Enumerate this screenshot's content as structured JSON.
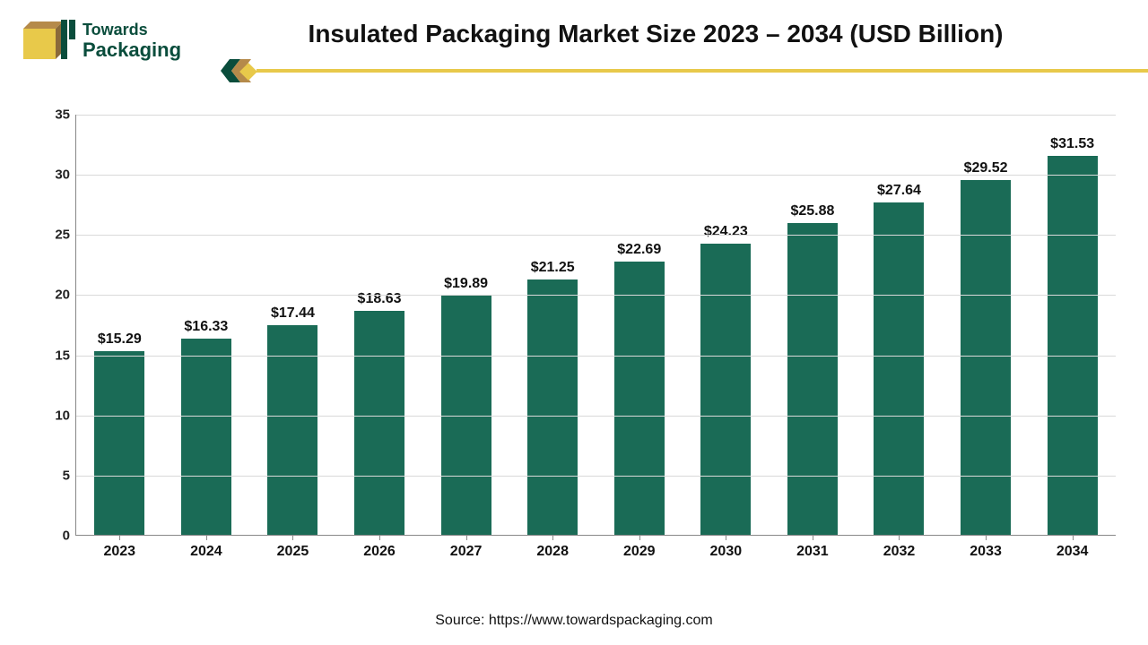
{
  "logo": {
    "top": "Towards",
    "bottom": "Packaging"
  },
  "chart": {
    "type": "bar",
    "title": "Insulated Packaging Market Size 2023 – 2034 (USD Billion)",
    "categories": [
      "2023",
      "2024",
      "2025",
      "2026",
      "2027",
      "2028",
      "2029",
      "2030",
      "2031",
      "2032",
      "2033",
      "2034"
    ],
    "values": [
      15.29,
      16.33,
      17.44,
      18.63,
      19.89,
      21.25,
      22.69,
      24.23,
      25.88,
      27.64,
      29.52,
      31.53
    ],
    "value_labels": [
      "$15.29",
      "$16.33",
      "$17.44",
      "$18.63",
      "$19.89",
      "$21.25",
      "$22.69",
      "$24.23",
      "$25.88",
      "$27.64",
      "$29.52",
      "$31.53"
    ],
    "bar_color": "#1a6b56",
    "ylim": [
      0,
      35
    ],
    "ytick_step": 5,
    "yticks": [
      0,
      5,
      10,
      15,
      20,
      25,
      30,
      35
    ],
    "grid_color": "#d9d9d9",
    "axis_color": "#888888",
    "background_color": "#ffffff",
    "title_fontsize": 28,
    "label_fontsize": 16,
    "value_label_fontsize": 16,
    "tick_fontsize": 15,
    "bar_width_ratio": 0.58
  },
  "divider": {
    "line_color": "#e8c94a",
    "chevron_green": "#0a4d3c",
    "chevron_tan": "#b58a4a",
    "diamond_yellow": "#e8c94a"
  },
  "logo_colors": {
    "box_front": "#e8c94a",
    "box_top": "#b58a4a",
    "box_side": "#8a6a3a",
    "bars_green": "#0a4d3c"
  },
  "source": "Source: https://www.towardspackaging.com"
}
